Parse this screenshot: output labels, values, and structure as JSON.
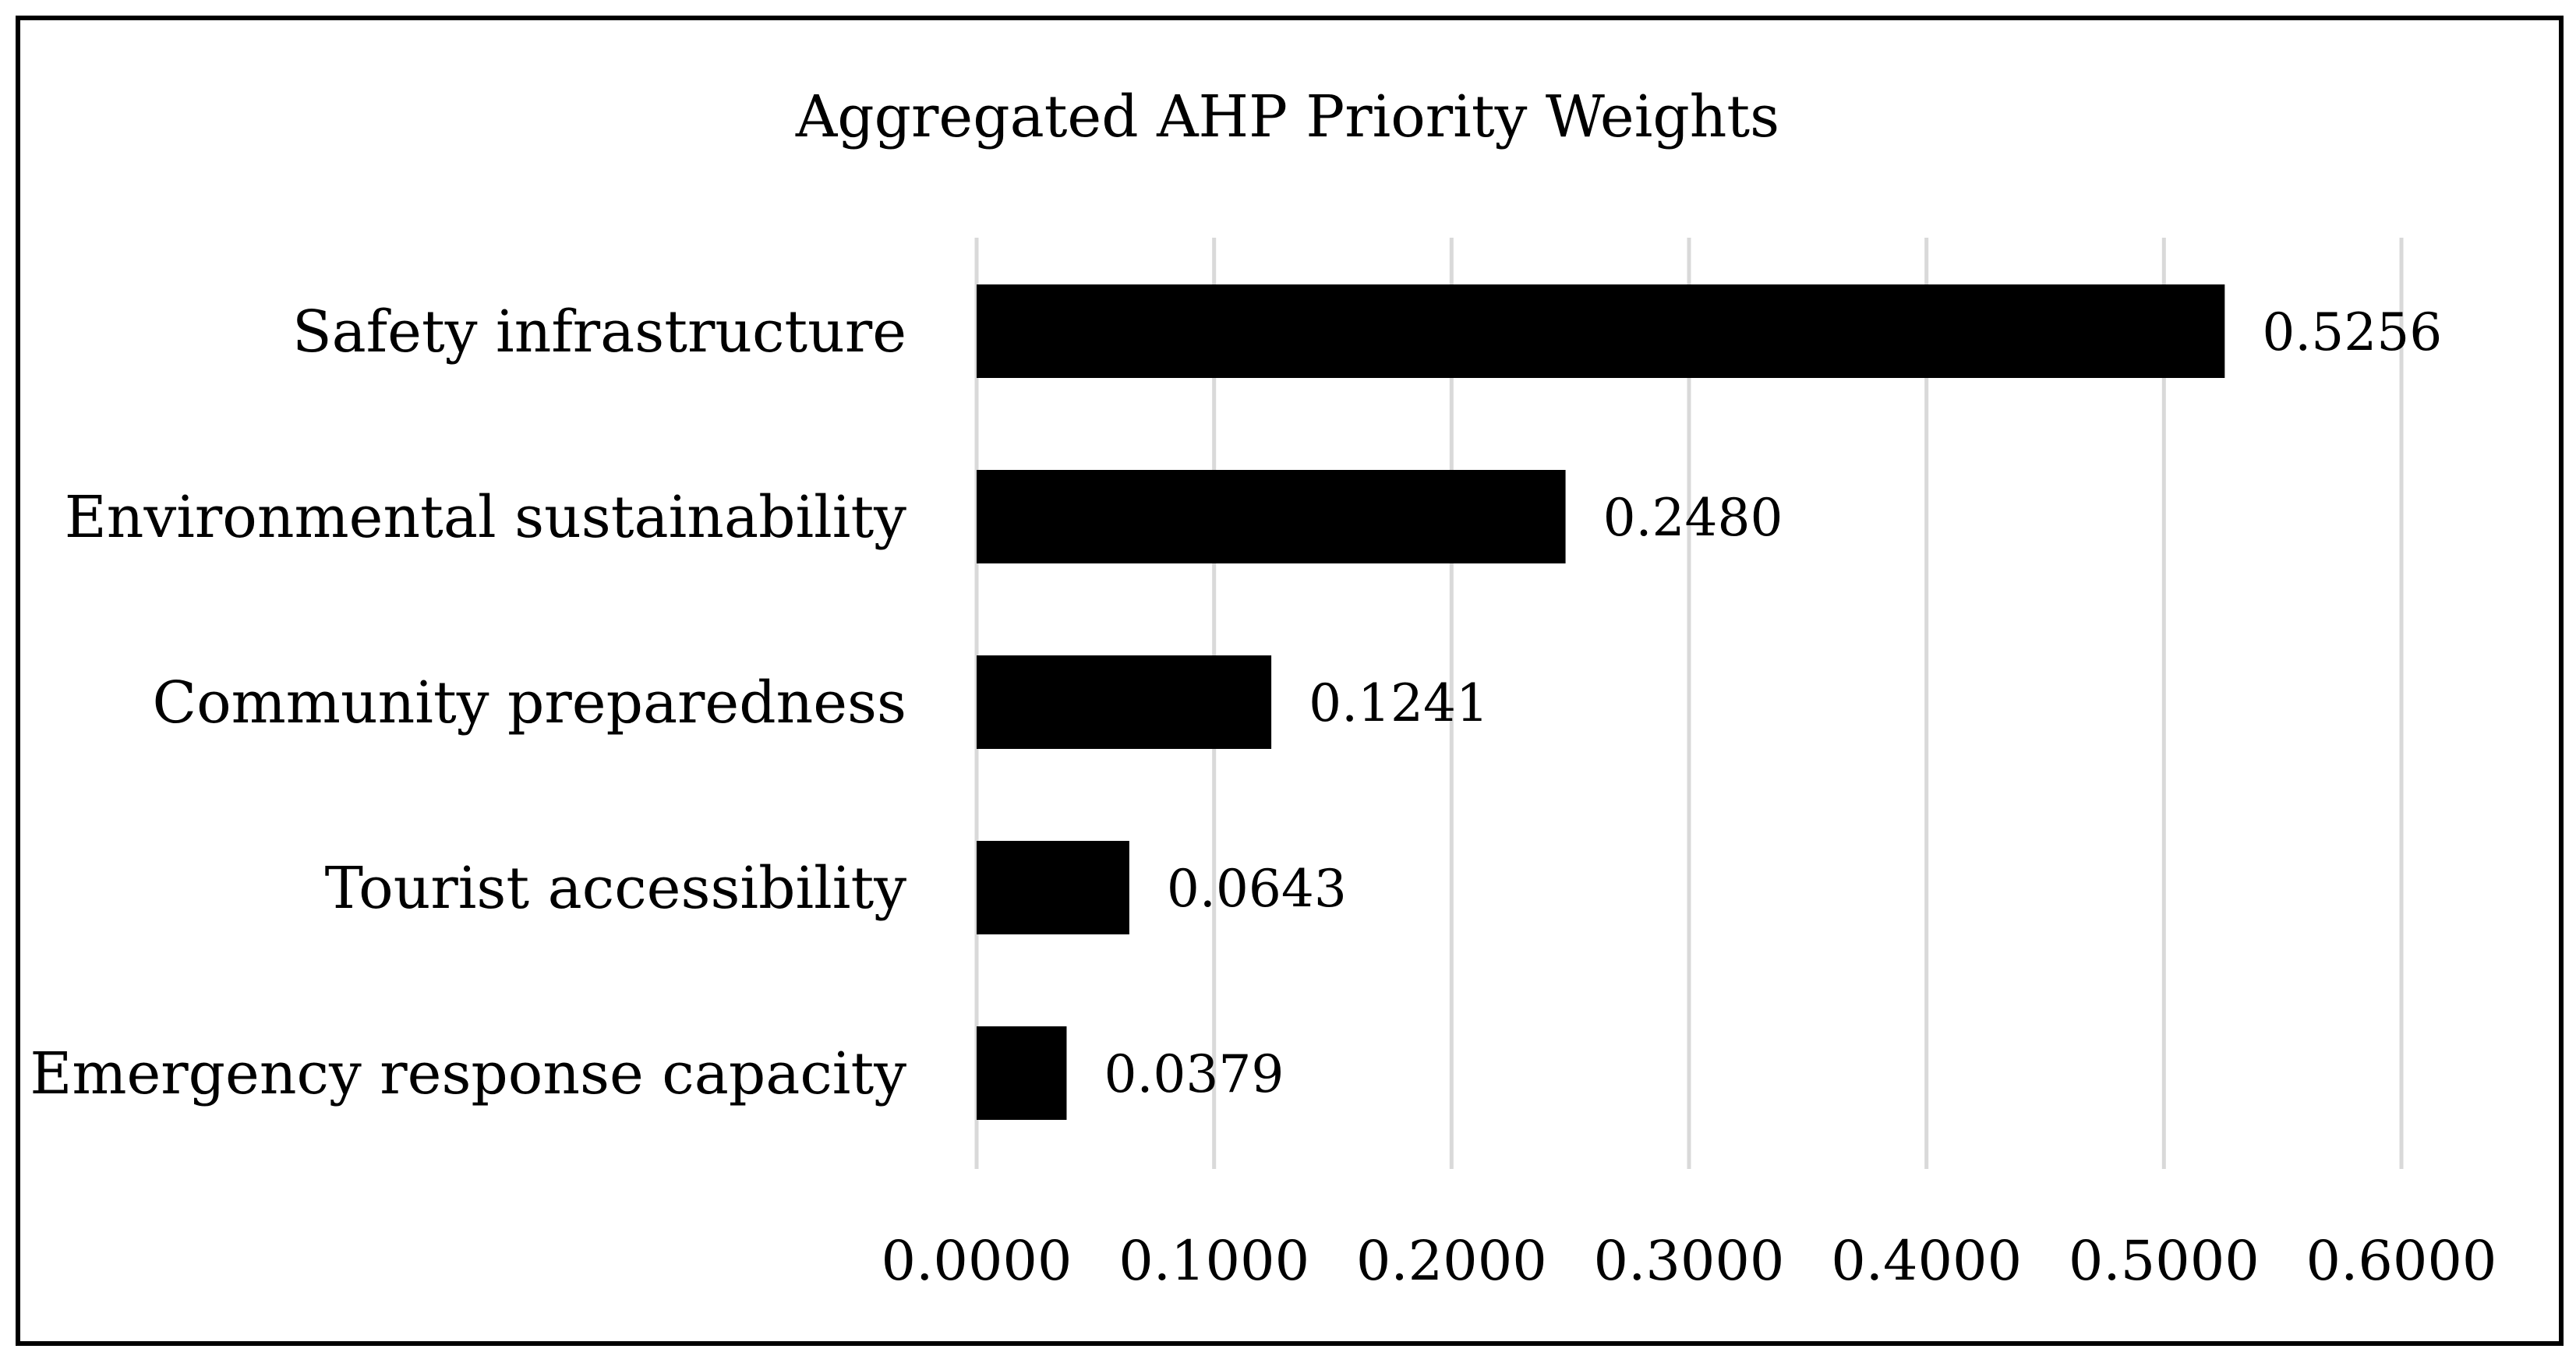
{
  "chart_data": {
    "type": "bar",
    "orientation": "horizontal",
    "title": "Aggregated AHP Priority Weights",
    "xlabel": "",
    "ylabel": "",
    "categories": [
      "Safety infrastructure",
      "Environmental sustainability",
      "Community preparedness",
      "Tourist accessibility",
      "Emergency response capacity"
    ],
    "values": [
      0.5256,
      0.248,
      0.1241,
      0.0643,
      0.0379
    ],
    "value_labels": [
      "0.5256",
      "0.2480",
      "0.1241",
      "0.0643",
      "0.0379"
    ],
    "xlim": [
      0,
      0.6
    ],
    "x_ticks": [
      0,
      0.1,
      0.2,
      0.3,
      0.4,
      0.5,
      0.6
    ],
    "x_tick_labels": [
      "0.0000",
      "0.1000",
      "0.2000",
      "0.3000",
      "0.4000",
      "0.5000",
      "0.6000"
    ],
    "grid": "vertical",
    "legend": "none",
    "colors": {
      "bar": "#000000",
      "grid": "#d9d9d9",
      "text": "#000000",
      "frame": "#000000"
    }
  }
}
